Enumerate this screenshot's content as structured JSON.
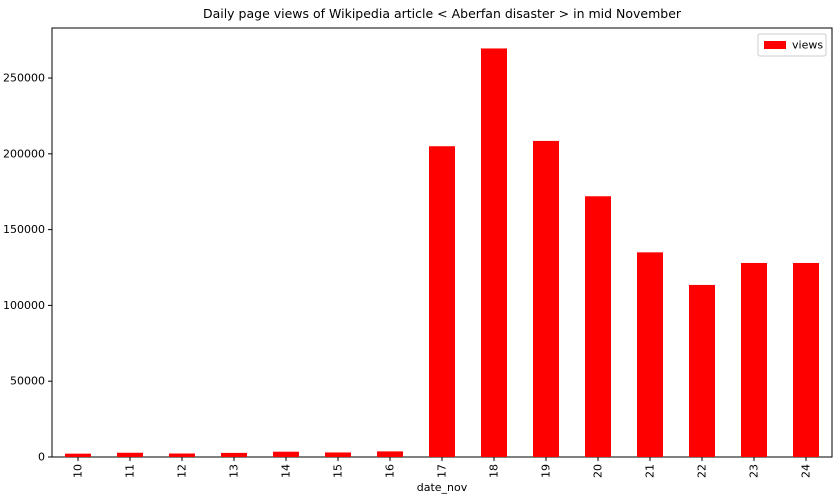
{
  "chart_data": {
    "type": "bar",
    "title": "Daily page views of Wikipedia article < Aberfan disaster > in mid November",
    "xlabel": "date_nov",
    "ylabel": "",
    "categories": [
      "10",
      "11",
      "12",
      "13",
      "14",
      "15",
      "16",
      "17",
      "18",
      "19",
      "20",
      "21",
      "22",
      "23",
      "24"
    ],
    "series": [
      {
        "name": "views",
        "color": "#ff0000",
        "values": [
          2200,
          2800,
          2300,
          2700,
          3500,
          3000,
          3700,
          205000,
          269500,
          208500,
          172000,
          135000,
          113500,
          128000,
          128000
        ]
      }
    ],
    "ylim": [
      0,
      283000
    ],
    "yticks": [
      0,
      50000,
      100000,
      150000,
      200000,
      250000
    ],
    "legend_position": "top-right",
    "grid": false
  }
}
